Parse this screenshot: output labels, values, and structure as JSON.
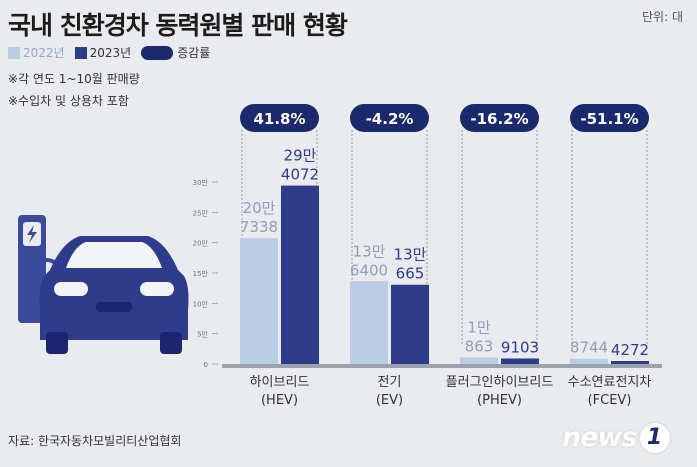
{
  "header": {
    "title": "국내 친환경차 동력원별 판매 현황",
    "unit": "단위: 대"
  },
  "legend": {
    "items": [
      {
        "label": "2022년",
        "color": "#b9cde3"
      },
      {
        "label": "2023년",
        "color": "#2e3c8c"
      },
      {
        "label": "증감률",
        "color": "#1a2a6c"
      }
    ]
  },
  "notes": [
    "※각 연도 1~10월 판매량",
    "※수입차 및 상용차 포함"
  ],
  "source": "자료: 한국자동차모빌리티산업협회",
  "logo": {
    "text": "news",
    "num": "1"
  },
  "chart_data": {
    "type": "bar",
    "categories": [
      "하이브리드\n(HEV)",
      "전기\n(EV)",
      "플러그인하이브리드\n(PHEV)",
      "수소연료전지차\n(FCEV)"
    ],
    "series": [
      {
        "name": "2022년",
        "values": [
          207338,
          136400,
          10863,
          8744
        ],
        "labels": [
          "20만\n7338",
          "13만\n6400",
          "1만\n863",
          "8744"
        ],
        "color": "#b9cde3"
      },
      {
        "name": "2023년",
        "values": [
          294072,
          130665,
          9103,
          4272
        ],
        "labels": [
          "29만\n4072",
          "13만\n665",
          "9103",
          "4272"
        ],
        "color": "#2e3c8c"
      }
    ],
    "change": [
      "41.8%",
      "-4.2%",
      "-16.2%",
      "-51.1%"
    ],
    "ytick_labels": [
      "0",
      "5만",
      "10만",
      "15만",
      "20만",
      "25만",
      "30만"
    ],
    "ylim": [
      0,
      300000
    ],
    "grid": false
  }
}
